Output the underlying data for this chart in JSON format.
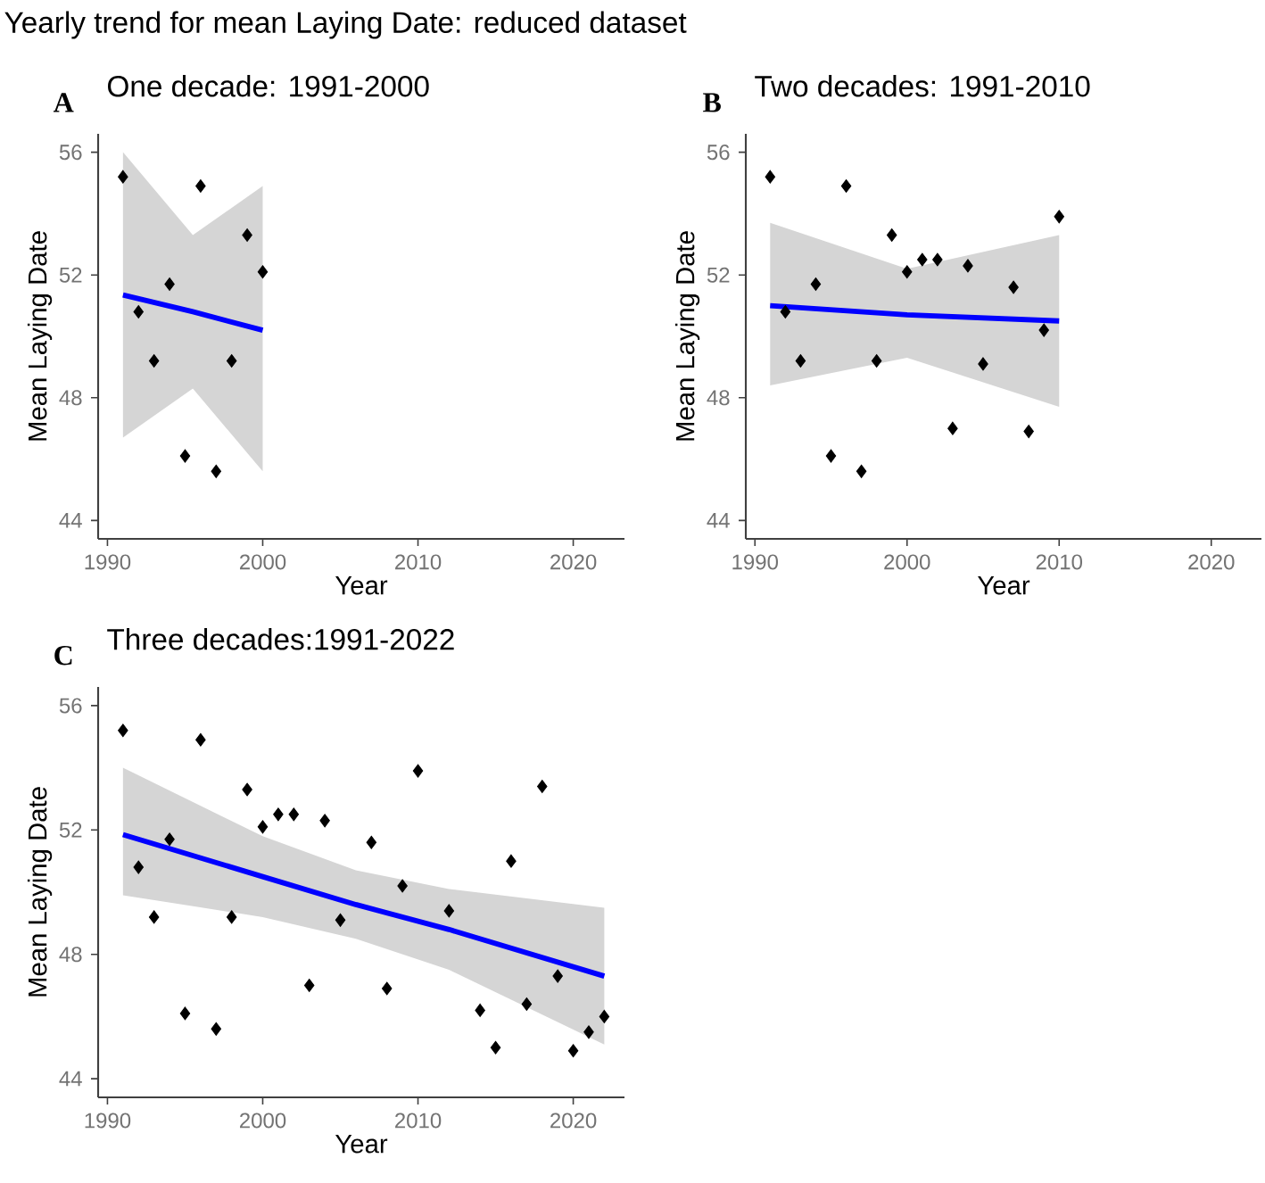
{
  "chart_data": [
    {
      "type": "scatter",
      "title": "One decade: 1991-2000",
      "annotations": [
        "Yearly trend for mean Laying Date: reduced dataset",
        "A"
      ],
      "xlabel": "Year",
      "ylabel": "Mean Laying Date",
      "xlim": [
        1989.4,
        2023.3
      ],
      "ylim": [
        43.4,
        56.6
      ],
      "xticks": [
        1990,
        2000,
        2010,
        2020
      ],
      "yticks": [
        44,
        48,
        52,
        56
      ],
      "series": [
        {
          "marker": "diamond",
          "color": "#000000",
          "x": [
            1991,
            1992,
            1993,
            1994,
            1995,
            1996,
            1997,
            1998,
            1999,
            2000
          ],
          "values": [
            55.2,
            50.8,
            49.2,
            51.7,
            46.1,
            54.9,
            45.6,
            49.2,
            53.3,
            52.1
          ]
        },
        {
          "type": "line",
          "color": "#0000ff",
          "x": [
            1991,
            1995.5,
            2000
          ],
          "values": [
            51.35,
            50.8,
            50.2
          ],
          "lower": [
            46.7,
            48.3,
            45.6
          ],
          "upper": [
            56.0,
            53.3,
            54.9
          ]
        }
      ]
    },
    {
      "type": "scatter",
      "title": "Two decades: 1991-2010",
      "annotations": [
        "B"
      ],
      "xlabel": "Year",
      "ylabel": "Mean Laying Date",
      "xlim": [
        1989.4,
        2023.3
      ],
      "ylim": [
        43.4,
        56.6
      ],
      "xticks": [
        1990,
        2000,
        2010,
        2020
      ],
      "yticks": [
        44,
        48,
        52,
        56
      ],
      "series": [
        {
          "marker": "diamond",
          "color": "#000000",
          "x": [
            1991,
            1992,
            1993,
            1994,
            1995,
            1996,
            1997,
            1998,
            1999,
            2000,
            2001,
            2002,
            2003,
            2004,
            2005,
            2007,
            2008,
            2009,
            2010
          ],
          "values": [
            55.2,
            50.8,
            49.2,
            51.7,
            46.1,
            54.9,
            45.6,
            49.2,
            53.3,
            52.1,
            52.5,
            52.5,
            47.0,
            52.3,
            49.1,
            51.6,
            46.9,
            50.2,
            53.9
          ]
        },
        {
          "type": "line",
          "color": "#0000ff",
          "x": [
            1991,
            2000,
            2010
          ],
          "values": [
            51.0,
            50.7,
            50.5
          ],
          "lower": [
            48.4,
            49.3,
            47.7
          ],
          "upper": [
            53.7,
            52.2,
            53.3
          ]
        }
      ]
    },
    {
      "type": "scatter",
      "title": "Three decades:1991-2022",
      "annotations": [
        "C"
      ],
      "xlabel": "Year",
      "ylabel": "Mean Laying Date",
      "xlim": [
        1989.4,
        2023.3
      ],
      "ylim": [
        43.4,
        56.6
      ],
      "xticks": [
        1990,
        2000,
        2010,
        2020
      ],
      "yticks": [
        44,
        48,
        52,
        56
      ],
      "series": [
        {
          "marker": "diamond",
          "color": "#000000",
          "x": [
            1991,
            1992,
            1993,
            1994,
            1995,
            1996,
            1997,
            1998,
            1999,
            2000,
            2001,
            2002,
            2003,
            2004,
            2005,
            2007,
            2008,
            2009,
            2010,
            2012,
            2014,
            2015,
            2016,
            2017,
            2018,
            2019,
            2020,
            2021,
            2022
          ],
          "values": [
            55.2,
            50.8,
            49.2,
            51.7,
            46.1,
            54.9,
            45.6,
            49.2,
            53.3,
            52.1,
            52.5,
            52.5,
            47.0,
            52.3,
            49.1,
            51.6,
            46.9,
            50.2,
            53.9,
            49.4,
            46.2,
            45.0,
            51.0,
            46.4,
            53.4,
            47.3,
            44.9,
            45.5,
            46.0
          ]
        },
        {
          "type": "line",
          "color": "#0000ff",
          "x": [
            1991,
            2000,
            2006,
            2012,
            2022
          ],
          "values": [
            51.85,
            50.5,
            49.6,
            48.8,
            47.3
          ],
          "lower": [
            49.9,
            49.2,
            48.5,
            47.5,
            45.1
          ],
          "upper": [
            54.0,
            51.8,
            50.7,
            50.1,
            49.5
          ]
        }
      ]
    }
  ]
}
